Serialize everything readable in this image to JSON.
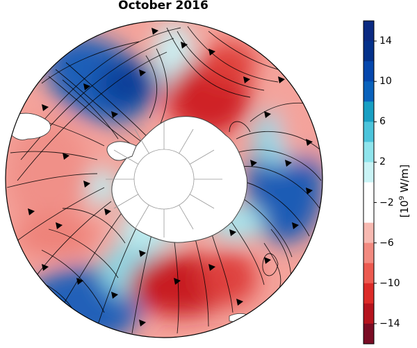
{
  "title": "October 2016",
  "colorbar": {
    "title_base": "[10",
    "title_exp": "9",
    "title_unit": " W/m]",
    "tick_labels": [
      "14",
      "10",
      "6",
      "2",
      "−2",
      "−6",
      "−10",
      "−14"
    ],
    "range": [
      -16,
      16
    ],
    "colors": [
      "#7a0c24",
      "#b5141e",
      "#dc2b28",
      "#ec5a50",
      "#f28a80",
      "#f7b9b1",
      "#ffffff",
      "#ffffff",
      "#c9f3f5",
      "#8fe4ec",
      "#4cc4db",
      "#189fc3",
      "#0a62bc",
      "#0547ad",
      "#04318a",
      "#0b2a82"
    ]
  },
  "map": {
    "projection": "south-polar-stereographic",
    "shading": "diverging red-white-blue anomaly field with streamlines",
    "grid": "meridians every 30 degrees"
  }
}
